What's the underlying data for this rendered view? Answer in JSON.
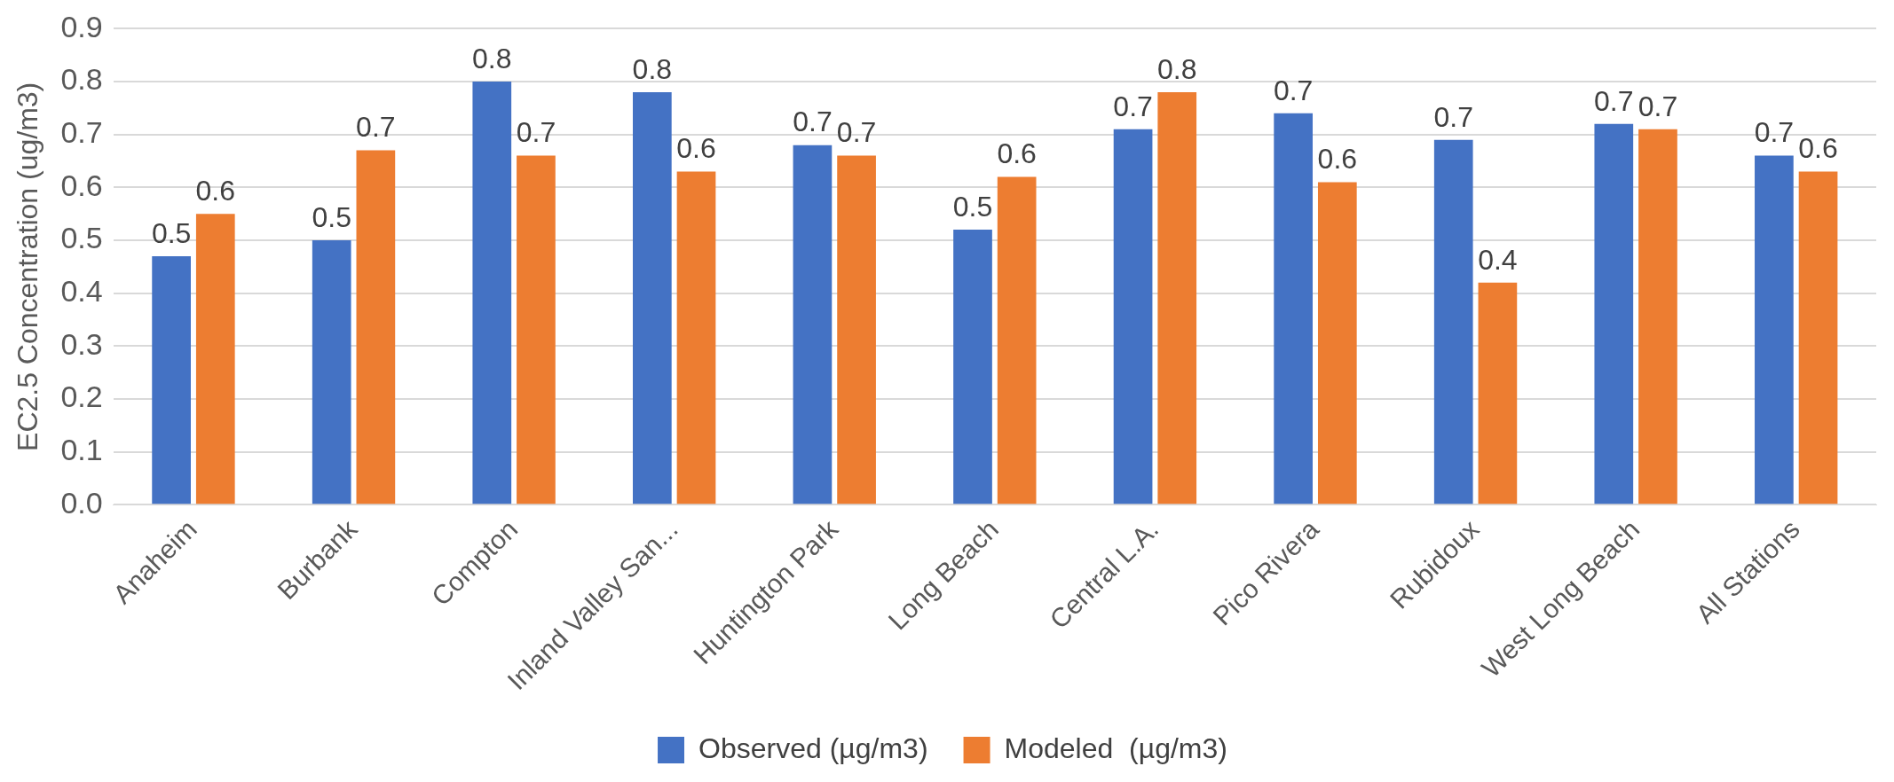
{
  "chart_data": {
    "type": "bar",
    "ylabel": "EC2.5 Concentration (ug/m3)",
    "categories": [
      "Anaheim",
      "Burbank",
      "Compton",
      "Inland Valley San...",
      "Huntington Park",
      "Long Beach",
      "Central L.A.",
      "Pico Rivera",
      "Rubidoux",
      "West Long Beach",
      "All Stations"
    ],
    "series": [
      {
        "name": "Observed (µg/m3)",
        "color": "#4472c4",
        "values": [
          0.47,
          0.5,
          0.8,
          0.78,
          0.68,
          0.52,
          0.71,
          0.74,
          0.69,
          0.72,
          0.66
        ],
        "value_labels": [
          "0.5",
          "0.5",
          "0.8",
          "0.8",
          "0.7",
          "0.5",
          "0.7",
          "0.7",
          "0.7",
          "0.7",
          "0.7"
        ]
      },
      {
        "name": "Modeled  (µg/m3)",
        "color": "#ed7d31",
        "values": [
          0.55,
          0.67,
          0.66,
          0.63,
          0.66,
          0.62,
          0.78,
          0.61,
          0.42,
          0.71,
          0.63
        ],
        "value_labels": [
          "0.6",
          "0.7",
          "0.7",
          "0.6",
          "0.7",
          "0.6",
          "0.8",
          "0.6",
          "0.4",
          "0.7",
          "0.6"
        ]
      }
    ],
    "ylim": [
      0,
      0.9
    ],
    "yticks": [
      {
        "value": 0,
        "label": "0.0"
      },
      0.1,
      0.2,
      0.3,
      0.4,
      0.5,
      0.6,
      0.7,
      0.8,
      0.9
    ],
    "grid": "y",
    "legend": "bottom"
  }
}
